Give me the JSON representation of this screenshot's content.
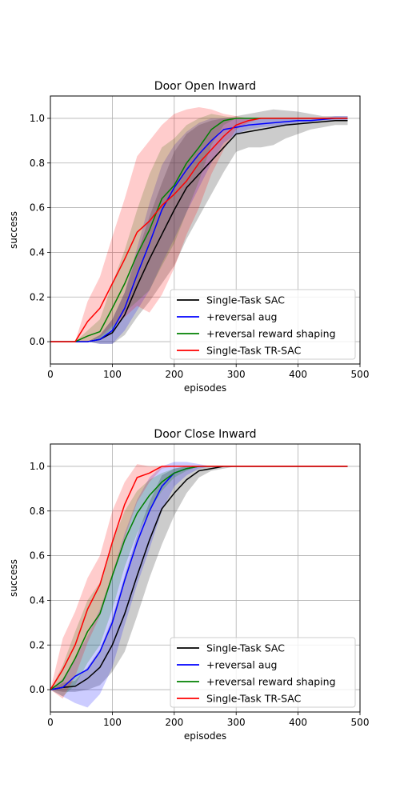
{
  "chart_data": [
    {
      "type": "line",
      "title": "Door Open Inward",
      "xlabel": "episodes",
      "ylabel": "success",
      "xlim": [
        0,
        500
      ],
      "ylim": [
        -0.1,
        1.1
      ],
      "x_ticks": [
        "0",
        "100",
        "200",
        "300",
        "400",
        "500"
      ],
      "y_ticks": [
        "0.0",
        "0.2",
        "0.4",
        "0.6",
        "0.8",
        "1.0"
      ],
      "grid": true,
      "legend_position": "lower right",
      "series": [
        {
          "name": "Single-Task SAC",
          "color": "#000000",
          "x": [
            0,
            20,
            40,
            60,
            80,
            100,
            120,
            140,
            160,
            180,
            200,
            220,
            240,
            260,
            280,
            300,
            320,
            340,
            360,
            380,
            400,
            420,
            440,
            460,
            480
          ],
          "y": [
            0,
            0,
            0,
            0,
            0.01,
            0.04,
            0.12,
            0.25,
            0.37,
            0.48,
            0.59,
            0.69,
            0.75,
            0.81,
            0.87,
            0.93,
            0.94,
            0.95,
            0.96,
            0.97,
            0.975,
            0.98,
            0.985,
            0.99,
            0.99
          ],
          "lower": [
            0,
            0,
            0,
            0,
            -0.01,
            -0.01,
            0.03,
            0.11,
            0.18,
            0.26,
            0.34,
            0.46,
            0.56,
            0.66,
            0.76,
            0.85,
            0.87,
            0.87,
            0.88,
            0.91,
            0.93,
            0.95,
            0.96,
            0.97,
            0.97
          ],
          "upper": [
            0,
            0,
            0,
            0,
            0.03,
            0.1,
            0.22,
            0.39,
            0.56,
            0.71,
            0.85,
            0.93,
            0.97,
            0.99,
            1.0,
            1.01,
            1.02,
            1.03,
            1.04,
            1.035,
            1.03,
            1.02,
            1.01,
            1.01,
            1.01
          ]
        },
        {
          "name": "+reversal aug",
          "color": "#0000ff",
          "x": [
            0,
            20,
            40,
            60,
            80,
            100,
            120,
            140,
            160,
            180,
            200,
            220,
            240,
            260,
            280,
            300,
            320,
            340,
            360,
            380,
            400,
            420,
            440,
            460,
            480
          ],
          "y": [
            0,
            0,
            0,
            0,
            0.01,
            0.05,
            0.15,
            0.3,
            0.44,
            0.59,
            0.69,
            0.77,
            0.84,
            0.9,
            0.95,
            0.96,
            0.97,
            0.975,
            0.98,
            0.985,
            0.99,
            0.99,
            0.995,
            1.0,
            1.0
          ],
          "lower": [
            0,
            0,
            0,
            0,
            -0.01,
            -0.01,
            0.05,
            0.14,
            0.23,
            0.35,
            0.46,
            0.58,
            0.69,
            0.8,
            0.89,
            0.93,
            0.95,
            0.96,
            0.965,
            0.97,
            0.98,
            0.985,
            0.99,
            0.99,
            0.99
          ],
          "upper": [
            0,
            0,
            0,
            0,
            0.03,
            0.1,
            0.22,
            0.42,
            0.62,
            0.79,
            0.88,
            0.94,
            0.98,
            1.0,
            1.0,
            1.0,
            1.0,
            1.0,
            1.0,
            1.0,
            1.0,
            1.0,
            1.0,
            1.01,
            1.01
          ]
        },
        {
          "name": "+reversal reward shaping",
          "color": "#008000",
          "x": [
            0,
            20,
            40,
            60,
            80,
            100,
            120,
            140,
            160,
            180,
            200,
            220,
            240,
            260,
            280,
            300,
            320,
            340,
            360,
            380,
            400,
            420,
            440,
            460,
            480
          ],
          "y": [
            0,
            0,
            0,
            0.025,
            0.045,
            0.15,
            0.26,
            0.39,
            0.5,
            0.64,
            0.7,
            0.8,
            0.87,
            0.95,
            0.99,
            1.0,
            1.0,
            1.0,
            1.0,
            1.0,
            1.0,
            1.0,
            1.0,
            1.0,
            1.0
          ],
          "lower": [
            0,
            0,
            0,
            0,
            0.01,
            0.06,
            0.13,
            0.18,
            0.23,
            0.34,
            0.44,
            0.58,
            0.72,
            0.88,
            0.97,
            1.0,
            1.0,
            1.0,
            1.0,
            1.0,
            1.0,
            1.0,
            1.0,
            1.0,
            1.0
          ],
          "upper": [
            0,
            0,
            0,
            0.05,
            0.1,
            0.26,
            0.41,
            0.59,
            0.75,
            0.87,
            0.91,
            0.97,
            1.0,
            1.02,
            1.01,
            1.0,
            1.0,
            1.0,
            1.0,
            1.0,
            1.0,
            1.0,
            1.0,
            1.0,
            1.0
          ]
        },
        {
          "name": "Single-Task TR-SAC",
          "color": "#ff0000",
          "x": [
            0,
            20,
            40,
            60,
            80,
            100,
            120,
            140,
            160,
            180,
            200,
            220,
            240,
            260,
            280,
            300,
            320,
            340,
            360,
            380,
            400,
            420,
            440,
            460,
            480
          ],
          "y": [
            0,
            0,
            0,
            0.09,
            0.15,
            0.26,
            0.37,
            0.49,
            0.54,
            0.61,
            0.66,
            0.72,
            0.8,
            0.86,
            0.92,
            0.97,
            0.99,
            1.0,
            1.0,
            1.0,
            1.0,
            1.0,
            1.0,
            1.0,
            1.0
          ],
          "lower": [
            0,
            0,
            0,
            0,
            0.02,
            0.07,
            0.11,
            0.16,
            0.13,
            0.21,
            0.33,
            0.48,
            0.6,
            0.75,
            0.86,
            0.95,
            0.98,
            1.0,
            1.0,
            1.0,
            1.0,
            1.0,
            1.0,
            1.0,
            1.0
          ],
          "upper": [
            0,
            0,
            0,
            0.18,
            0.29,
            0.47,
            0.64,
            0.83,
            0.9,
            0.97,
            1.02,
            1.04,
            1.05,
            1.04,
            1.02,
            1.01,
            1.0,
            1.0,
            1.0,
            1.0,
            1.0,
            1.0,
            1.0,
            1.0,
            1.0
          ]
        }
      ]
    },
    {
      "type": "line",
      "title": "Door Close Inward",
      "xlabel": "episodes",
      "ylabel": "success",
      "xlim": [
        0,
        500
      ],
      "ylim": [
        -0.1,
        1.1
      ],
      "x_ticks": [
        "0",
        "100",
        "200",
        "300",
        "400",
        "500"
      ],
      "y_ticks": [
        "0.0",
        "0.2",
        "0.4",
        "0.6",
        "0.8",
        "1.0"
      ],
      "grid": true,
      "legend_position": "lower right",
      "series": [
        {
          "name": "Single-Task SAC",
          "color": "#000000",
          "x": [
            0,
            20,
            40,
            60,
            80,
            100,
            120,
            140,
            160,
            180,
            200,
            220,
            240,
            260,
            280,
            300,
            320,
            340,
            360,
            380,
            400,
            420,
            440,
            460,
            480
          ],
          "y": [
            0,
            0.01,
            0.015,
            0.05,
            0.1,
            0.2,
            0.34,
            0.51,
            0.67,
            0.81,
            0.88,
            0.94,
            0.98,
            0.99,
            1.0,
            1.0,
            1.0,
            1.0,
            1.0,
            1.0,
            1.0,
            1.0,
            1.0,
            1.0,
            1.0
          ],
          "lower": [
            0,
            -0.01,
            -0.01,
            0.0,
            0.02,
            0.08,
            0.17,
            0.33,
            0.5,
            0.65,
            0.78,
            0.88,
            0.95,
            0.98,
            0.99,
            1.0,
            1.0,
            1.0,
            1.0,
            1.0,
            1.0,
            1.0,
            1.0,
            1.0,
            1.0
          ],
          "upper": [
            0,
            0.03,
            0.04,
            0.1,
            0.18,
            0.32,
            0.51,
            0.69,
            0.84,
            0.96,
            0.99,
            1.0,
            1.0,
            1.0,
            1.0,
            1.0,
            1.0,
            1.0,
            1.0,
            1.0,
            1.0,
            1.0,
            1.0,
            1.0,
            1.0
          ]
        },
        {
          "name": "+reversal aug",
          "color": "#0000ff",
          "x": [
            0,
            20,
            40,
            60,
            80,
            100,
            120,
            140,
            160,
            180,
            200,
            220,
            240,
            260,
            280,
            300,
            320,
            340,
            360,
            380,
            400,
            420,
            440,
            460,
            480
          ],
          "y": [
            0,
            0.01,
            0.06,
            0.09,
            0.17,
            0.3,
            0.49,
            0.66,
            0.8,
            0.91,
            0.97,
            0.99,
            1.0,
            1.0,
            1.0,
            1.0,
            1.0,
            1.0,
            1.0,
            1.0,
            1.0,
            1.0,
            1.0,
            1.0,
            1.0
          ],
          "lower": [
            0,
            -0.03,
            -0.06,
            -0.08,
            -0.02,
            0.1,
            0.29,
            0.47,
            0.63,
            0.8,
            0.91,
            0.96,
            0.99,
            1.0,
            1.0,
            1.0,
            1.0,
            1.0,
            1.0,
            1.0,
            1.0,
            1.0,
            1.0,
            1.0,
            1.0
          ],
          "upper": [
            0,
            0.05,
            0.14,
            0.24,
            0.36,
            0.52,
            0.7,
            0.85,
            0.95,
            1.0,
            1.02,
            1.02,
            1.01,
            1.0,
            1.0,
            1.0,
            1.0,
            1.0,
            1.0,
            1.0,
            1.0,
            1.0,
            1.0,
            1.0,
            1.0
          ]
        },
        {
          "name": "+reversal reward shaping",
          "color": "#008000",
          "x": [
            0,
            20,
            40,
            60,
            80,
            100,
            120,
            140,
            160,
            180,
            200,
            220,
            240,
            260,
            280,
            300,
            320,
            340,
            360,
            380,
            400,
            420,
            440,
            460,
            480
          ],
          "y": [
            0,
            0.04,
            0.14,
            0.26,
            0.34,
            0.51,
            0.67,
            0.79,
            0.87,
            0.93,
            0.97,
            0.99,
            1.0,
            1.0,
            1.0,
            1.0,
            1.0,
            1.0,
            1.0,
            1.0,
            1.0,
            1.0,
            1.0,
            1.0,
            1.0
          ],
          "lower": [
            0,
            -0.03,
            0.02,
            0.12,
            0.2,
            0.36,
            0.55,
            0.7,
            0.8,
            0.89,
            0.95,
            0.98,
            1.0,
            1.0,
            1.0,
            1.0,
            1.0,
            1.0,
            1.0,
            1.0,
            1.0,
            1.0,
            1.0,
            1.0,
            1.0
          ],
          "upper": [
            0,
            0.11,
            0.26,
            0.4,
            0.48,
            0.66,
            0.8,
            0.89,
            0.94,
            0.97,
            0.99,
            1.0,
            1.0,
            1.0,
            1.0,
            1.0,
            1.0,
            1.0,
            1.0,
            1.0,
            1.0,
            1.0,
            1.0,
            1.0,
            1.0
          ]
        },
        {
          "name": "Single-Task TR-SAC",
          "color": "#ff0000",
          "x": [
            0,
            20,
            40,
            60,
            80,
            100,
            120,
            140,
            160,
            180,
            200,
            220,
            240,
            260,
            280,
            300,
            320,
            340,
            360,
            380,
            400,
            420,
            440,
            460,
            480
          ],
          "y": [
            0,
            0.09,
            0.2,
            0.36,
            0.47,
            0.66,
            0.83,
            0.95,
            0.97,
            1.0,
            1.0,
            1.0,
            1.0,
            1.0,
            1.0,
            1.0,
            1.0,
            1.0,
            1.0,
            1.0,
            1.0,
            1.0,
            1.0,
            1.0,
            1.0
          ],
          "lower": [
            0,
            -0.04,
            0.06,
            0.21,
            0.33,
            0.51,
            0.68,
            0.84,
            0.93,
            0.99,
            1.0,
            1.0,
            1.0,
            1.0,
            1.0,
            1.0,
            1.0,
            1.0,
            1.0,
            1.0,
            1.0,
            1.0,
            1.0,
            1.0,
            1.0
          ],
          "upper": [
            0,
            0.23,
            0.35,
            0.5,
            0.6,
            0.8,
            0.93,
            1.01,
            1.0,
            1.0,
            1.0,
            1.0,
            1.0,
            1.0,
            1.0,
            1.0,
            1.0,
            1.0,
            1.0,
            1.0,
            1.0,
            1.0,
            1.0,
            1.0,
            1.0
          ]
        }
      ]
    }
  ]
}
